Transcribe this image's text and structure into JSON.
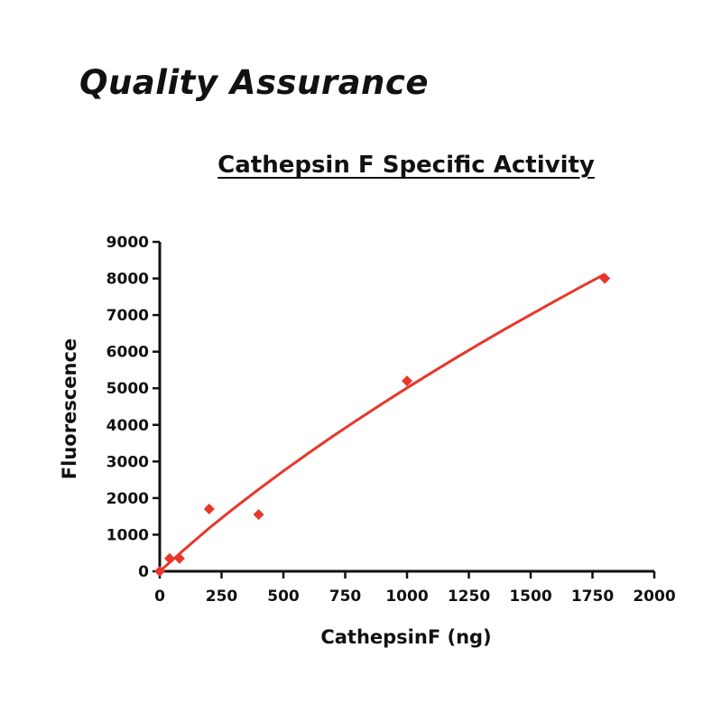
{
  "page": {
    "heading": "Quality Assurance"
  },
  "chart_data": {
    "type": "scatter",
    "title": "Cathepsin F Specific Activity",
    "xlabel": "CathepsinF (ng)",
    "ylabel": "Fluorescence",
    "xlim": [
      0,
      2000
    ],
    "ylim": [
      0,
      9000
    ],
    "xticks": [
      0,
      250,
      500,
      750,
      1000,
      1250,
      1500,
      1750,
      2000
    ],
    "yticks": [
      0,
      1000,
      2000,
      3000,
      4000,
      5000,
      6000,
      7000,
      8000,
      9000
    ],
    "points": [
      {
        "x": 0,
        "y": 0
      },
      {
        "x": 40,
        "y": 350
      },
      {
        "x": 80,
        "y": 350
      },
      {
        "x": 200,
        "y": 1700
      },
      {
        "x": 400,
        "y": 1550
      },
      {
        "x": 1000,
        "y": 5200
      },
      {
        "x": 1800,
        "y": 8000
      }
    ],
    "fit_line": {
      "x": [
        0,
        100,
        200,
        300,
        400,
        500,
        600,
        700,
        800,
        900,
        1000,
        1100,
        1200,
        1300,
        1400,
        1500,
        1600,
        1700,
        1800
      ],
      "y": [
        0,
        600,
        1180,
        1720,
        2240,
        2740,
        3220,
        3690,
        4140,
        4580,
        5010,
        5430,
        5840,
        6240,
        6630,
        7010,
        7390,
        7760,
        8120
      ]
    },
    "marker_color": "#e8372a",
    "line_color": "#e8372a",
    "grid": false,
    "legend": false
  }
}
